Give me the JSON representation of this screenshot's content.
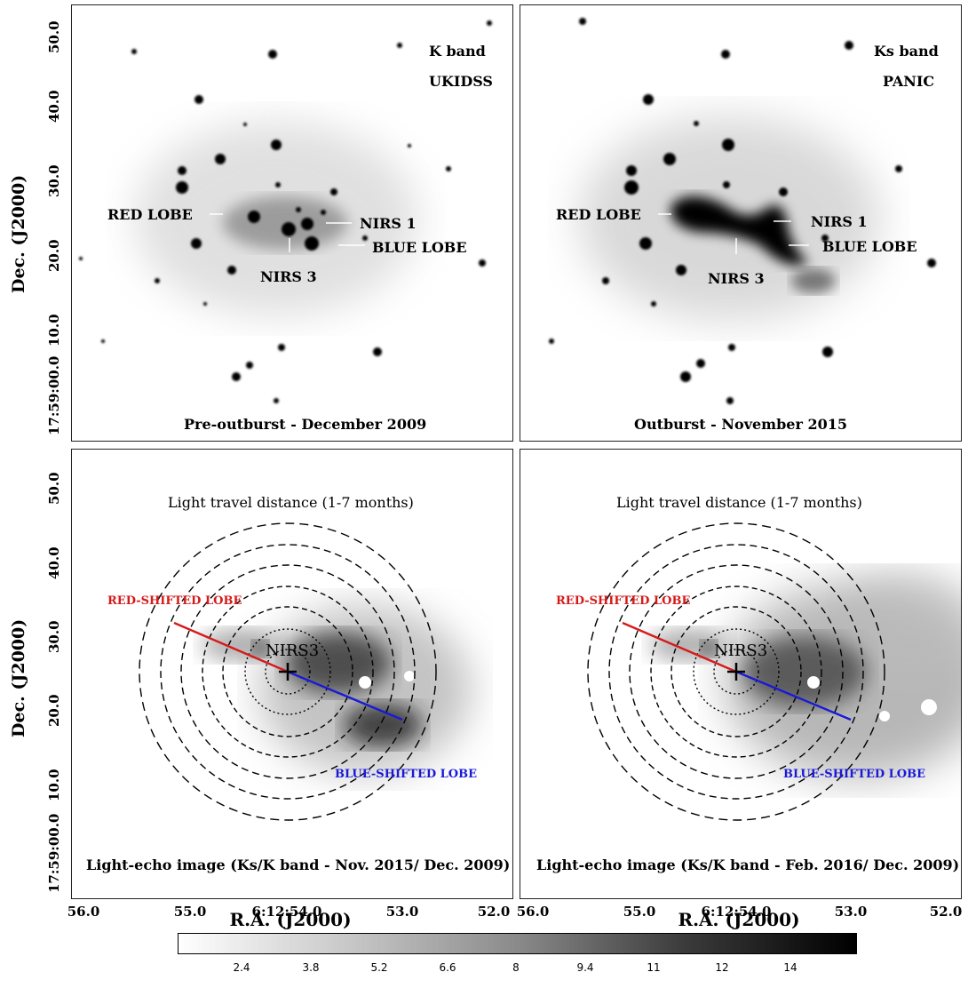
{
  "panels": {
    "tl": {
      "band": "K band",
      "survey": "UKIDSS",
      "caption": "Pre-outburst - December 2009",
      "red_lobe": "RED LOBE",
      "nirs1": "NIRS 1",
      "blue_lobe": "BLUE LOBE",
      "nirs3": "NIRS 3"
    },
    "tr": {
      "band": "Ks band",
      "survey": "PANIC",
      "caption": "Outburst - November 2015",
      "red_lobe": "RED LOBE",
      "nirs1": "NIRS 1",
      "blue_lobe": "BLUE LOBE",
      "nirs3": "NIRS 3"
    },
    "bl": {
      "title": "Light travel distance (1-7 months)",
      "red_lobe": "RED-SHIFTED LOBE",
      "blue_lobe": "BLUE-SHIFTED LOBE",
      "source": "NIRS3",
      "caption": "Light-echo image (Ks/K band - Nov. 2015/ Dec. 2009)"
    },
    "br": {
      "title": "Light travel distance (1-7 months)",
      "red_lobe": "RED-SHIFTED LOBE",
      "blue_lobe": "BLUE-SHIFTED LOBE",
      "source": "NIRS3",
      "caption": "Light-echo image (Ks/K band - Feb. 2016/ Dec. 2009)"
    }
  },
  "axes": {
    "ylabel": "Dec. (J2000)",
    "xlabel": "R.A. (J2000)",
    "yticks_top": [
      "50.0",
      "40.0",
      "30.0",
      "20.0",
      "10.0",
      "17:59:00.0"
    ],
    "yticks_bottom": [
      "50.0",
      "40.0",
      "30.0",
      "20.0",
      "10.0",
      "17:59:00.0"
    ],
    "xticks_left": [
      "56.0",
      "55.0",
      "6:12:54.0",
      "53.0",
      "52.0"
    ],
    "xticks_right": [
      "56.0",
      "55.0",
      "6:12:54.0",
      "53.0",
      "52.0"
    ]
  },
  "colorbar": {
    "ticks": [
      "2.4",
      "3.8",
      "5.2",
      "6.6",
      "8",
      "9.4",
      "11",
      "12",
      "14"
    ]
  },
  "colors": {
    "red_lobe": "#d61a1a",
    "blue_lobe": "#1a1ad6"
  }
}
